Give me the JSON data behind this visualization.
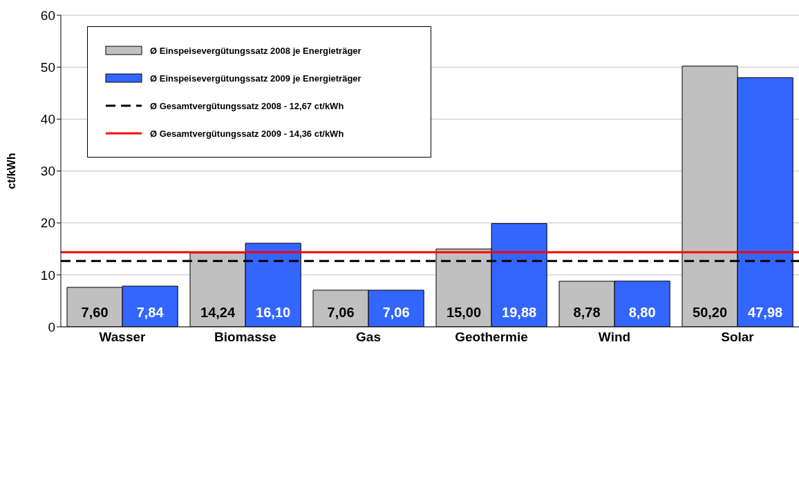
{
  "chart_data": {
    "type": "bar",
    "ylabel": "ct/kWh",
    "categories": [
      "Wasser",
      "Biomasse",
      "Gas",
      "Geothermie",
      "Wind",
      "Solar"
    ],
    "series": [
      {
        "name": "Ø Einspeisevergütungssatz 2008 je Energieträger",
        "color": "#c0c0c0",
        "values": [
          7.6,
          14.24,
          7.06,
          15.0,
          8.78,
          50.2
        ],
        "value_labels": [
          "7,60",
          "14,24",
          "7,06",
          "15,00",
          "8,78",
          "50,20"
        ]
      },
      {
        "name": "Ø Einspeisevergütungssatz 2009 je Energieträger",
        "color": "#3366ff",
        "values": [
          7.84,
          16.1,
          7.06,
          19.88,
          8.8,
          47.98
        ],
        "value_labels": [
          "7,84",
          "16,10",
          "7,06",
          "19,88",
          "8,80",
          "47,98"
        ]
      }
    ],
    "ref_lines": [
      {
        "axis": "y",
        "value": 12.67,
        "label": "Ø Gesamtvergütungssatz 2008 - 12,67 ct/kWh",
        "color": "#000000",
        "line_style": "dashed"
      },
      {
        "axis": "y",
        "value": 14.36,
        "label": "Ø Gesamtvergütungssatz 2009 - 14,36 ct/kWh",
        "color": "#ff0000",
        "line_style": "solid"
      }
    ],
    "ylim": [
      0,
      60
    ],
    "yticks": [
      0,
      10,
      20,
      30,
      40,
      50,
      60
    ],
    "grid": "y",
    "legend": "top left"
  }
}
